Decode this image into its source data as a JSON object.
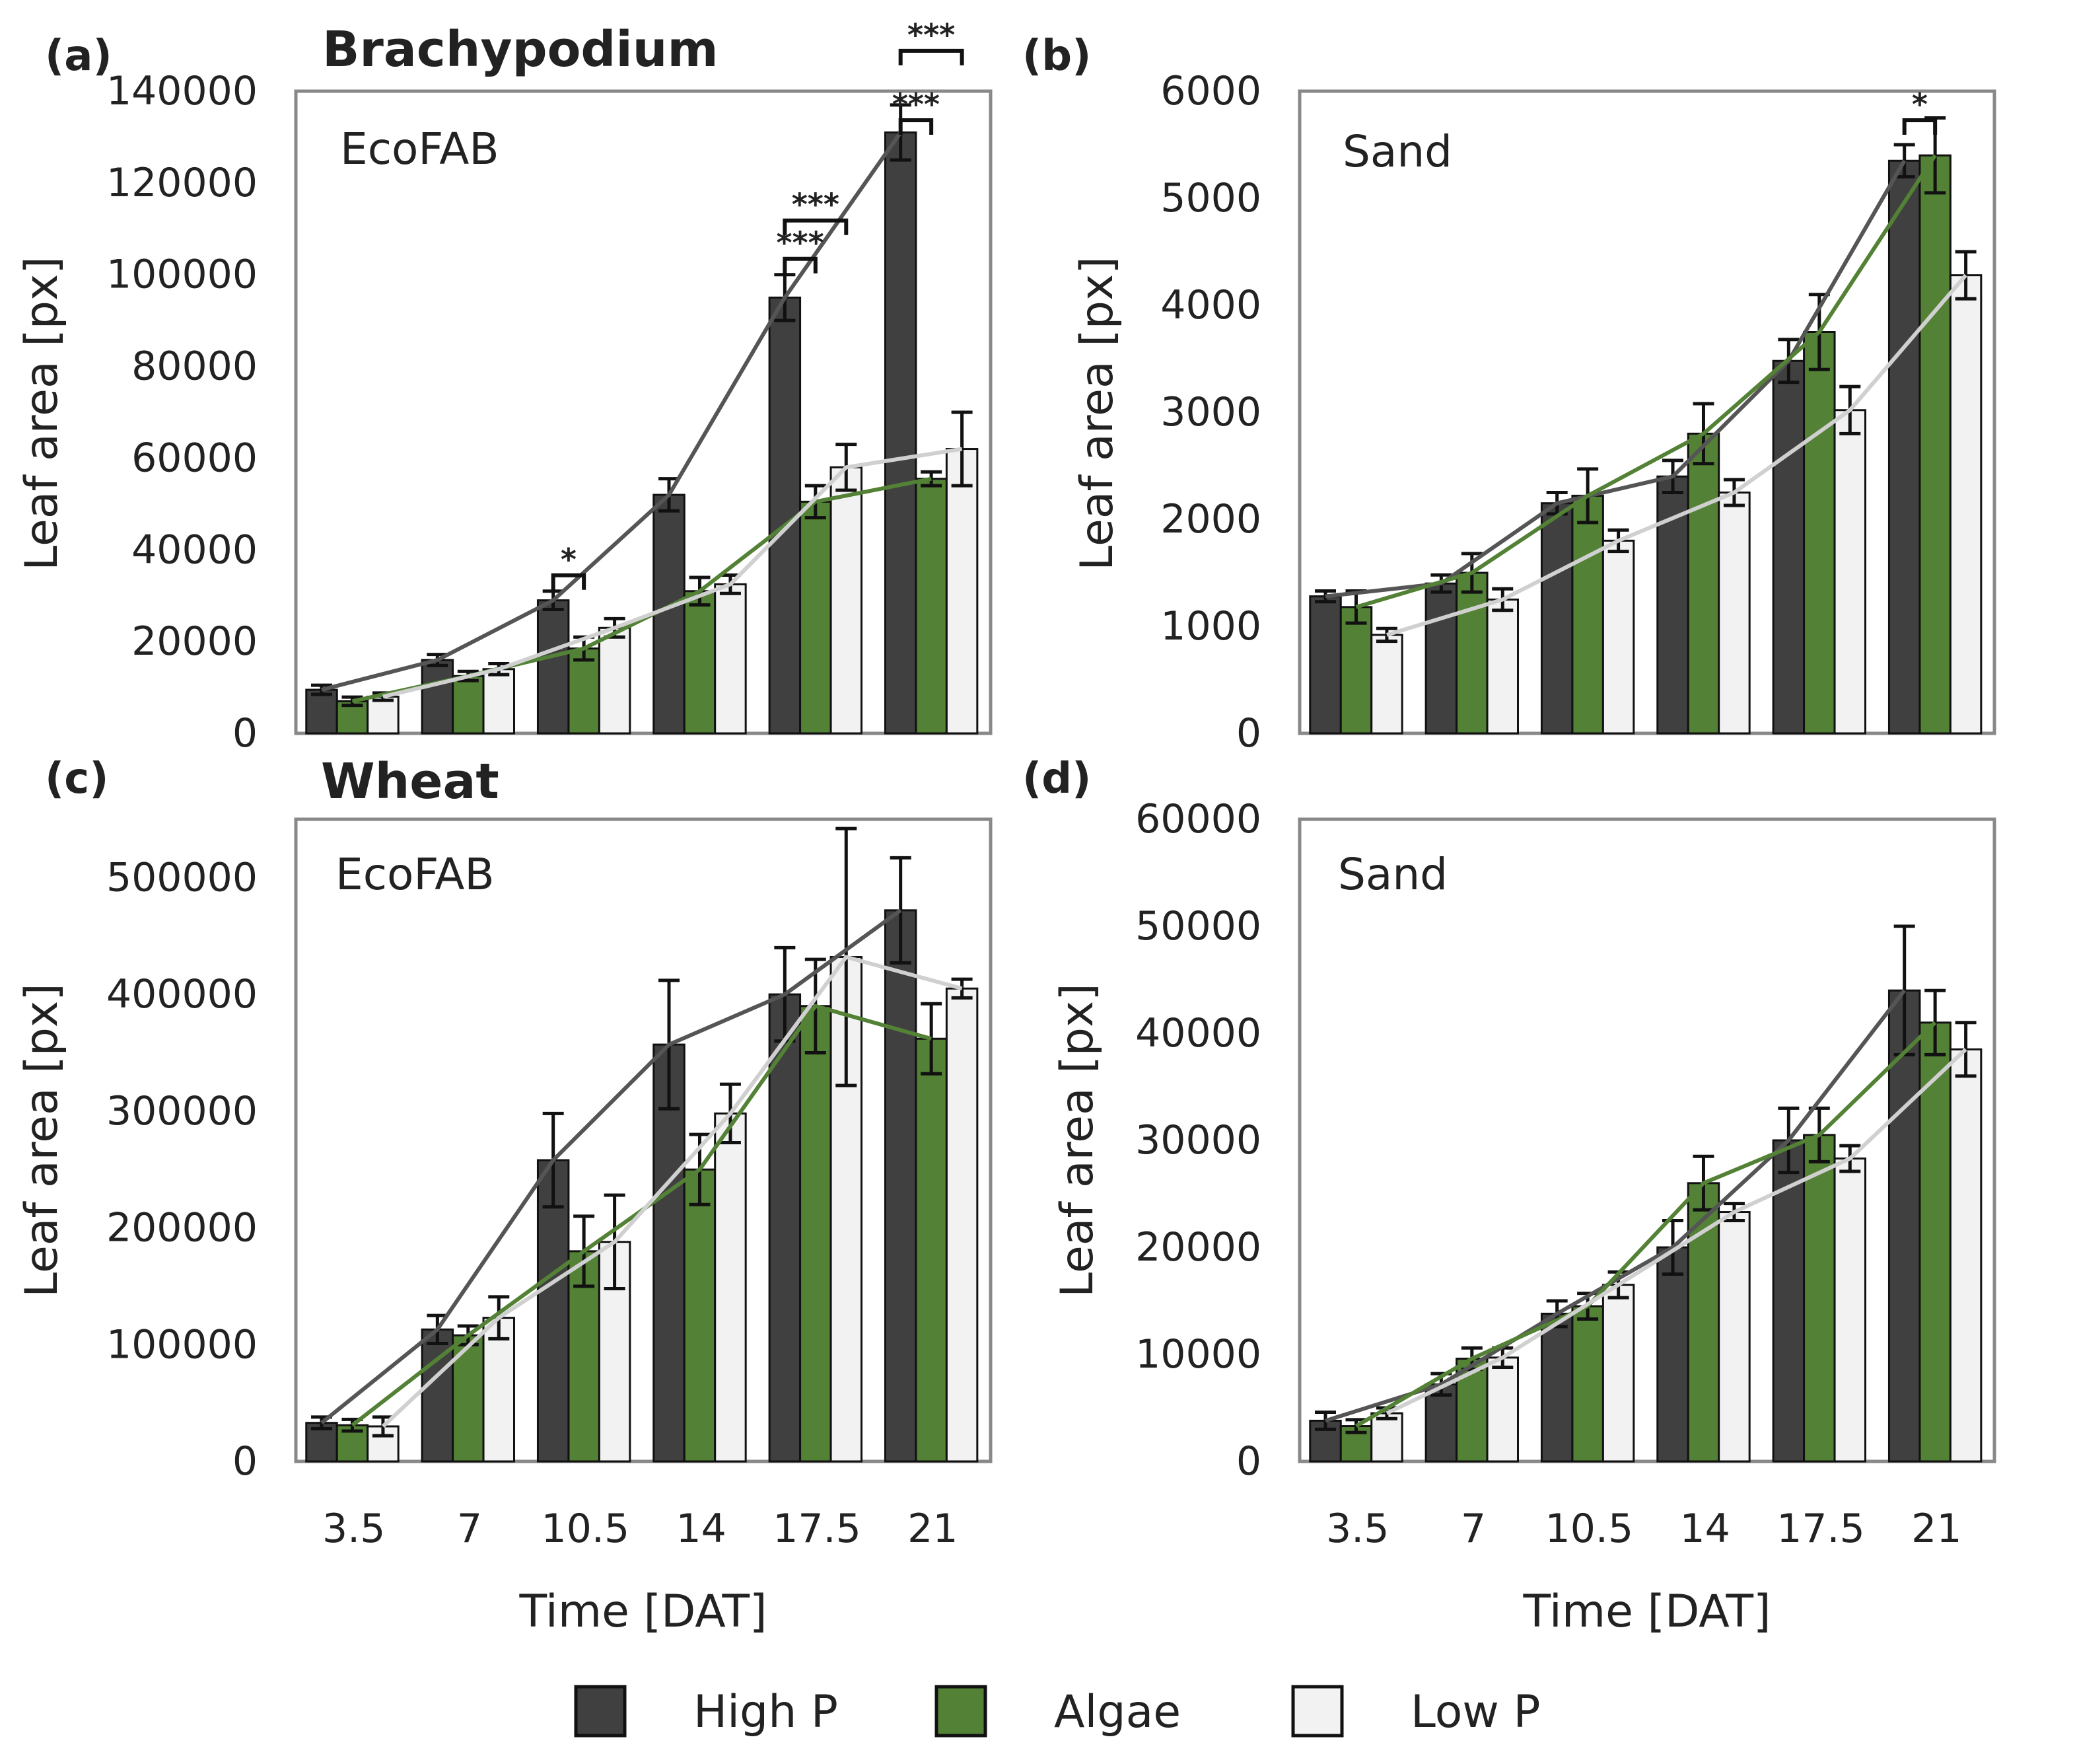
{
  "chart_data": [
    {
      "type": "bar",
      "panel": "(a)",
      "species_title": "Brachypodium",
      "inset_label": "EcoFAB",
      "xlabel": "",
      "ylabel": "Leaf area [px]",
      "ylim": [
        0,
        140000
      ],
      "yticks": [
        "0",
        "20000",
        "40000",
        "60000",
        "80000",
        "100000",
        "120000",
        "140000"
      ],
      "categories": [
        "3.5",
        "7",
        "10.5",
        "14",
        "17.5",
        "21"
      ],
      "show_xticks": false,
      "series": [
        {
          "name": "High P",
          "values": [
            9500,
            16000,
            29000,
            52000,
            95000,
            131000
          ],
          "errors": [
            1000,
            1200,
            2000,
            3500,
            5000,
            6000
          ]
        },
        {
          "name": "Algae",
          "values": [
            7000,
            12500,
            18500,
            31000,
            50500,
            55500
          ],
          "errors": [
            900,
            1000,
            2500,
            3000,
            3500,
            1500
          ]
        },
        {
          "name": "Low P",
          "values": [
            8000,
            14000,
            23000,
            32500,
            58000,
            62000
          ],
          "errors": [
            800,
            1200,
            2000,
            2000,
            5000,
            8000
          ]
        }
      ],
      "trend_lines": true,
      "significance": [
        {
          "label": "*",
          "category": "10.5"
        },
        {
          "label": "***",
          "category": "17.5",
          "pair": "High P-Algae"
        },
        {
          "label": "***",
          "category": "17.5",
          "pair": "High P-Low P"
        },
        {
          "label": "***",
          "category": "21",
          "pair": "High P-Algae"
        },
        {
          "label": "***",
          "category": "21",
          "pair": "High P-Low P"
        }
      ]
    },
    {
      "type": "bar",
      "panel": "(b)",
      "species_title": "",
      "inset_label": "Sand",
      "xlabel": "",
      "ylabel": "Leaf area [px]",
      "ylim": [
        0,
        6000
      ],
      "yticks": [
        "0",
        "1000",
        "2000",
        "3000",
        "4000",
        "5000",
        "6000"
      ],
      "categories": [
        "3.5",
        "7",
        "10.5",
        "14",
        "17.5",
        "21"
      ],
      "show_xticks": false,
      "series": [
        {
          "name": "High P",
          "values": [
            1280,
            1400,
            2150,
            2400,
            3480,
            5350
          ],
          "errors": [
            50,
            80,
            100,
            150,
            200,
            150
          ]
        },
        {
          "name": "Algae",
          "values": [
            1180,
            1500,
            2220,
            2800,
            3750,
            5400
          ],
          "errors": [
            150,
            180,
            250,
            280,
            350,
            350
          ]
        },
        {
          "name": "Low P",
          "values": [
            920,
            1250,
            1800,
            2250,
            3020,
            4280
          ],
          "errors": [
            60,
            100,
            100,
            120,
            220,
            220
          ]
        }
      ],
      "trend_lines": true,
      "significance": [
        {
          "label": "*",
          "category": "21"
        }
      ]
    },
    {
      "type": "bar",
      "panel": "(c)",
      "species_title": "Wheat",
      "inset_label": "EcoFAB",
      "xlabel": "Time [DAT]",
      "ylabel": "Leaf area [px]",
      "ylim": [
        0,
        550000
      ],
      "yticks": [
        "0",
        "100000",
        "200000",
        "300000",
        "400000",
        "500000"
      ],
      "categories": [
        "3.5",
        "7",
        "10.5",
        "14",
        "17.5",
        "21"
      ],
      "show_xticks": true,
      "series": [
        {
          "name": "High P",
          "values": [
            33000,
            113000,
            258000,
            357000,
            400000,
            472000
          ],
          "errors": [
            5000,
            12000,
            40000,
            55000,
            40000,
            45000
          ]
        },
        {
          "name": "Algae",
          "values": [
            31000,
            108000,
            180000,
            250000,
            390000,
            362000
          ],
          "errors": [
            5000,
            8000,
            30000,
            30000,
            40000,
            30000
          ]
        },
        {
          "name": "Low P",
          "values": [
            30000,
            123000,
            188000,
            298000,
            432000,
            405000
          ],
          "errors": [
            8000,
            18000,
            40000,
            25000,
            110000,
            8000
          ]
        }
      ],
      "trend_lines": true,
      "significance": []
    },
    {
      "type": "bar",
      "panel": "(d)",
      "species_title": "",
      "inset_label": "Sand",
      "xlabel": "Time [DAT]",
      "ylabel": "Leaf area [px]",
      "ylim": [
        0,
        60000
      ],
      "yticks": [
        "0",
        "10000",
        "20000",
        "30000",
        "40000",
        "50000",
        "60000"
      ],
      "categories": [
        "3.5",
        "7",
        "10.5",
        "14",
        "17.5",
        "21"
      ],
      "show_xticks": true,
      "series": [
        {
          "name": "High P",
          "values": [
            3800,
            7200,
            13800,
            20000,
            30000,
            44000
          ],
          "errors": [
            800,
            1000,
            1200,
            2500,
            3000,
            6000
          ]
        },
        {
          "name": "Algae",
          "values": [
            3300,
            9600,
            14500,
            26000,
            30500,
            41000
          ],
          "errors": [
            600,
            1000,
            1200,
            2500,
            2500,
            3000
          ]
        },
        {
          "name": "Low P",
          "values": [
            4500,
            9700,
            16500,
            23300,
            28300,
            38500
          ],
          "errors": [
            500,
            900,
            1200,
            800,
            1200,
            2500
          ]
        }
      ],
      "trend_lines": true,
      "significance": []
    }
  ],
  "legend": {
    "items": [
      {
        "label": "High P",
        "color": "#404040"
      },
      {
        "label": "Algae",
        "color": "#538135"
      },
      {
        "label": "Low P",
        "color": "#f2f2f2"
      }
    ]
  },
  "colors": {
    "high_p": "#404040",
    "algae": "#538135",
    "low_p": "#f2f2f2",
    "frame": "#888888",
    "trend_high_p": "#555555",
    "trend_algae": "#538135",
    "trend_low_p": "#d0d0d0"
  }
}
